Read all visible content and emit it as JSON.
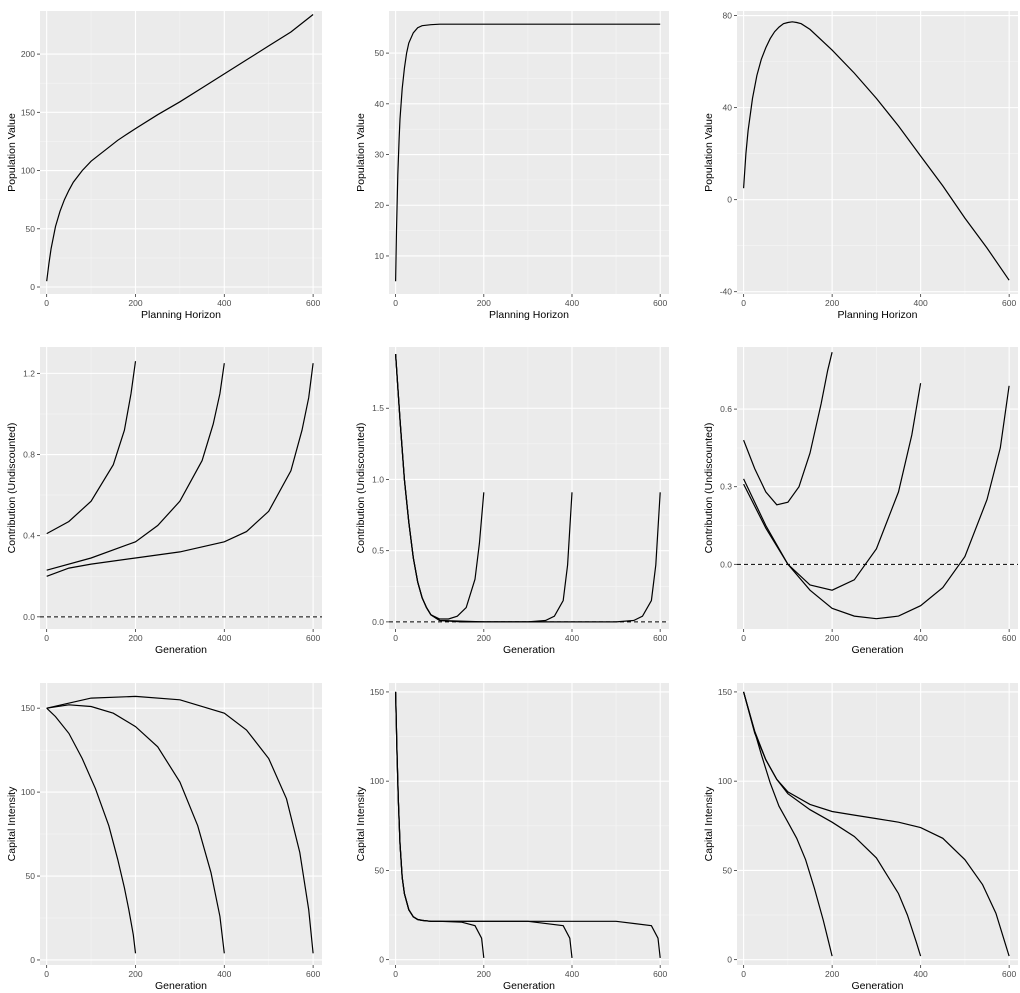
{
  "chart_data": [
    {
      "type": "line",
      "xlabel": "Planning Horizon",
      "ylabel": "Population Value",
      "xlim": [
        -15,
        620
      ],
      "ylim": [
        -6,
        237
      ],
      "xticks": [
        0,
        200,
        400,
        600
      ],
      "yticks": [
        0,
        50,
        100,
        150,
        200
      ],
      "series": [
        {
          "x": [
            0,
            5,
            10,
            20,
            30,
            40,
            50,
            60,
            80,
            100,
            120,
            140,
            160,
            180,
            200,
            250,
            300,
            350,
            400,
            450,
            500,
            550,
            600
          ],
          "y": [
            5,
            20,
            33,
            52,
            65,
            75,
            83,
            90,
            100,
            108,
            114,
            120,
            126,
            131,
            136,
            148,
            159,
            171,
            183,
            195,
            207,
            219,
            234
          ]
        }
      ]
    },
    {
      "type": "line",
      "xlabel": "Planning Horizon",
      "ylabel": "Population Value",
      "xlim": [
        -15,
        620
      ],
      "ylim": [
        2.5,
        58.3
      ],
      "xticks": [
        0,
        200,
        400,
        600
      ],
      "yticks": [
        10,
        20,
        30,
        40,
        50
      ],
      "series": [
        {
          "x": [
            0,
            2,
            5,
            8,
            10,
            15,
            20,
            25,
            30,
            40,
            50,
            60,
            80,
            100,
            150,
            200,
            300,
            400,
            500,
            600
          ],
          "y": [
            5,
            15,
            26,
            33,
            37,
            43,
            47,
            50,
            52,
            54,
            55,
            55.4,
            55.6,
            55.7,
            55.7,
            55.7,
            55.7,
            55.7,
            55.7,
            55.7
          ]
        }
      ]
    },
    {
      "type": "line",
      "xlabel": "Planning Horizon",
      "ylabel": "Population Value",
      "xlim": [
        -15,
        620
      ],
      "ylim": [
        -41,
        82
      ],
      "xticks": [
        0,
        200,
        400,
        600
      ],
      "yticks": [
        -40,
        0,
        40,
        80
      ],
      "series": [
        {
          "x": [
            0,
            5,
            10,
            20,
            30,
            40,
            50,
            60,
            70,
            80,
            90,
            100,
            110,
            120,
            130,
            150,
            200,
            250,
            300,
            350,
            400,
            450,
            500,
            550,
            600
          ],
          "y": [
            5,
            20,
            30,
            44,
            54,
            61,
            66,
            70,
            73,
            75,
            76.5,
            77,
            77.3,
            77,
            76.5,
            74,
            65,
            55,
            44,
            32,
            19,
            6,
            -8,
            -21,
            -35
          ]
        }
      ]
    },
    {
      "type": "line",
      "xlabel": "Generation",
      "ylabel": "Contribution (Undiscounted)",
      "xlim": [
        -15,
        620
      ],
      "ylim": [
        -0.06,
        1.33
      ],
      "xticks": [
        0,
        200,
        400,
        600
      ],
      "yticks": [
        0.0,
        0.4,
        0.8,
        1.2
      ],
      "ytick_labels": [
        "0.0",
        "0.4",
        "0.8",
        "1.2"
      ],
      "hline": 0,
      "series": [
        {
          "x": [
            0,
            50,
            100,
            150,
            175,
            190,
            200
          ],
          "y": [
            0.41,
            0.47,
            0.57,
            0.75,
            0.92,
            1.1,
            1.26
          ]
        },
        {
          "x": [
            0,
            100,
            200,
            250,
            300,
            350,
            375,
            390,
            400
          ],
          "y": [
            0.23,
            0.29,
            0.37,
            0.45,
            0.57,
            0.77,
            0.95,
            1.1,
            1.25
          ]
        },
        {
          "x": [
            0,
            50,
            100,
            200,
            300,
            400,
            450,
            500,
            550,
            575,
            590,
            600
          ],
          "y": [
            0.2,
            0.24,
            0.26,
            0.29,
            0.32,
            0.37,
            0.42,
            0.52,
            0.72,
            0.92,
            1.08,
            1.25
          ]
        }
      ]
    },
    {
      "type": "line",
      "xlabel": "Generation",
      "ylabel": "Contribution (Undiscounted)",
      "xlim": [
        -15,
        620
      ],
      "ylim": [
        -0.05,
        1.93
      ],
      "xticks": [
        0,
        200,
        400,
        600
      ],
      "yticks": [
        0.0,
        0.5,
        1.0,
        1.5
      ],
      "ytick_labels": [
        "0.0",
        "0.5",
        "1.0",
        "1.5"
      ],
      "hline": 0,
      "series": [
        {
          "x": [
            0,
            10,
            20,
            30,
            40,
            50,
            60,
            70,
            80,
            100,
            120,
            140,
            160,
            180,
            190,
            200
          ],
          "y": [
            1.88,
            1.42,
            1.0,
            0.7,
            0.45,
            0.28,
            0.17,
            0.1,
            0.05,
            0.02,
            0.02,
            0.04,
            0.1,
            0.3,
            0.55,
            0.91
          ]
        },
        {
          "x": [
            0,
            10,
            20,
            30,
            40,
            50,
            60,
            70,
            80,
            100,
            150,
            200,
            250,
            300,
            340,
            360,
            380,
            390,
            400
          ],
          "y": [
            1.88,
            1.42,
            1.0,
            0.7,
            0.45,
            0.28,
            0.17,
            0.1,
            0.05,
            0.01,
            0.0,
            0.0,
            0.0,
            0.0,
            0.01,
            0.04,
            0.15,
            0.4,
            0.91
          ]
        },
        {
          "x": [
            0,
            10,
            20,
            30,
            40,
            50,
            60,
            70,
            80,
            100,
            200,
            300,
            400,
            500,
            540,
            560,
            580,
            590,
            600
          ],
          "y": [
            1.88,
            1.42,
            1.0,
            0.7,
            0.45,
            0.28,
            0.17,
            0.1,
            0.05,
            0.01,
            0.0,
            0.0,
            0.0,
            0.0,
            0.01,
            0.04,
            0.15,
            0.4,
            0.91
          ]
        }
      ]
    },
    {
      "type": "line",
      "xlabel": "Generation",
      "ylabel": "Contribution (Undiscounted)",
      "xlim": [
        -15,
        620
      ],
      "ylim": [
        -0.25,
        0.84
      ],
      "xticks": [
        0,
        200,
        400,
        600
      ],
      "yticks": [
        0.0,
        0.3,
        0.6
      ],
      "ytick_labels": [
        "0.0",
        "0.3",
        "0.6"
      ],
      "hline": 0,
      "series": [
        {
          "x": [
            0,
            25,
            50,
            75,
            100,
            125,
            150,
            175,
            190,
            200
          ],
          "y": [
            0.48,
            0.37,
            0.28,
            0.23,
            0.24,
            0.3,
            0.43,
            0.62,
            0.75,
            0.82
          ]
        },
        {
          "x": [
            0,
            50,
            100,
            150,
            200,
            250,
            300,
            350,
            380,
            400
          ],
          "y": [
            0.33,
            0.15,
            0.0,
            -0.08,
            -0.1,
            -0.06,
            0.06,
            0.28,
            0.5,
            0.7
          ]
        },
        {
          "x": [
            0,
            50,
            100,
            150,
            200,
            250,
            300,
            350,
            400,
            450,
            500,
            550,
            580,
            600
          ],
          "y": [
            0.31,
            0.14,
            0.0,
            -0.1,
            -0.17,
            -0.2,
            -0.21,
            -0.2,
            -0.16,
            -0.09,
            0.03,
            0.25,
            0.45,
            0.69
          ]
        }
      ]
    },
    {
      "type": "line",
      "xlabel": "Generation",
      "ylabel": "Capital Intensity",
      "xlim": [
        -15,
        620
      ],
      "ylim": [
        -3,
        165
      ],
      "xticks": [
        0,
        200,
        400,
        600
      ],
      "yticks": [
        0,
        50,
        100,
        150
      ],
      "series": [
        {
          "x": [
            0,
            20,
            50,
            80,
            110,
            140,
            160,
            175,
            185,
            195,
            200
          ],
          "y": [
            150,
            145,
            135,
            120,
            102,
            80,
            60,
            43,
            30,
            15,
            4
          ]
        },
        {
          "x": [
            0,
            50,
            100,
            150,
            200,
            250,
            300,
            340,
            370,
            390,
            400
          ],
          "y": [
            150,
            152,
            151,
            147,
            139,
            127,
            106,
            80,
            52,
            26,
            4
          ]
        },
        {
          "x": [
            0,
            100,
            200,
            300,
            400,
            450,
            500,
            540,
            570,
            590,
            600
          ],
          "y": [
            150,
            156,
            157,
            155,
            147,
            137,
            120,
            96,
            64,
            30,
            4
          ]
        }
      ]
    },
    {
      "type": "line",
      "xlabel": "Generation",
      "ylabel": "Capital Intensity",
      "xlim": [
        -15,
        620
      ],
      "ylim": [
        -3,
        155
      ],
      "xticks": [
        0,
        200,
        400,
        600
      ],
      "yticks": [
        0,
        50,
        100,
        150
      ],
      "series": [
        {
          "x": [
            0,
            3,
            6,
            10,
            15,
            20,
            30,
            40,
            50,
            60,
            80,
            100,
            150,
            180,
            195,
            200
          ],
          "y": [
            150,
            118,
            90,
            65,
            46,
            37,
            28,
            24,
            22.5,
            22,
            21.5,
            21.5,
            21,
            19,
            12,
            1
          ]
        },
        {
          "x": [
            0,
            3,
            6,
            10,
            15,
            20,
            30,
            40,
            50,
            60,
            80,
            100,
            200,
            300,
            380,
            395,
            400
          ],
          "y": [
            150,
            118,
            90,
            65,
            46,
            37,
            28,
            24,
            22.5,
            22,
            21.5,
            21.5,
            21.5,
            21.5,
            19,
            12,
            1
          ]
        },
        {
          "x": [
            0,
            3,
            6,
            10,
            15,
            20,
            30,
            40,
            50,
            60,
            80,
            100,
            200,
            300,
            400,
            500,
            580,
            595,
            600
          ],
          "y": [
            150,
            118,
            90,
            65,
            46,
            37,
            28,
            24,
            22.5,
            22,
            21.5,
            21.5,
            21.5,
            21.5,
            21.5,
            21.5,
            19,
            12,
            1
          ]
        }
      ]
    },
    {
      "type": "line",
      "xlabel": "Generation",
      "ylabel": "Capital Intensity",
      "xlim": [
        -15,
        620
      ],
      "ylim": [
        -3,
        155
      ],
      "xticks": [
        0,
        200,
        400,
        600
      ],
      "yticks": [
        0,
        50,
        100,
        150
      ],
      "series": [
        {
          "x": [
            0,
            20,
            40,
            60,
            80,
            100,
            120,
            140,
            160,
            180,
            190,
            200
          ],
          "y": [
            150,
            132,
            115,
            99,
            86,
            77,
            68,
            56,
            40,
            22,
            12,
            2
          ]
        },
        {
          "x": [
            0,
            25,
            50,
            75,
            100,
            150,
            200,
            250,
            300,
            350,
            370,
            390,
            400
          ],
          "y": [
            150,
            128,
            112,
            101,
            93,
            84,
            77,
            69,
            57,
            37,
            25,
            10,
            2
          ]
        },
        {
          "x": [
            0,
            25,
            50,
            75,
            100,
            150,
            200,
            250,
            300,
            350,
            400,
            450,
            500,
            540,
            570,
            590,
            600
          ],
          "y": [
            150,
            127,
            112,
            101,
            94,
            87,
            83,
            81,
            79,
            77,
            74,
            68,
            56,
            42,
            26,
            10,
            2
          ]
        }
      ]
    }
  ]
}
